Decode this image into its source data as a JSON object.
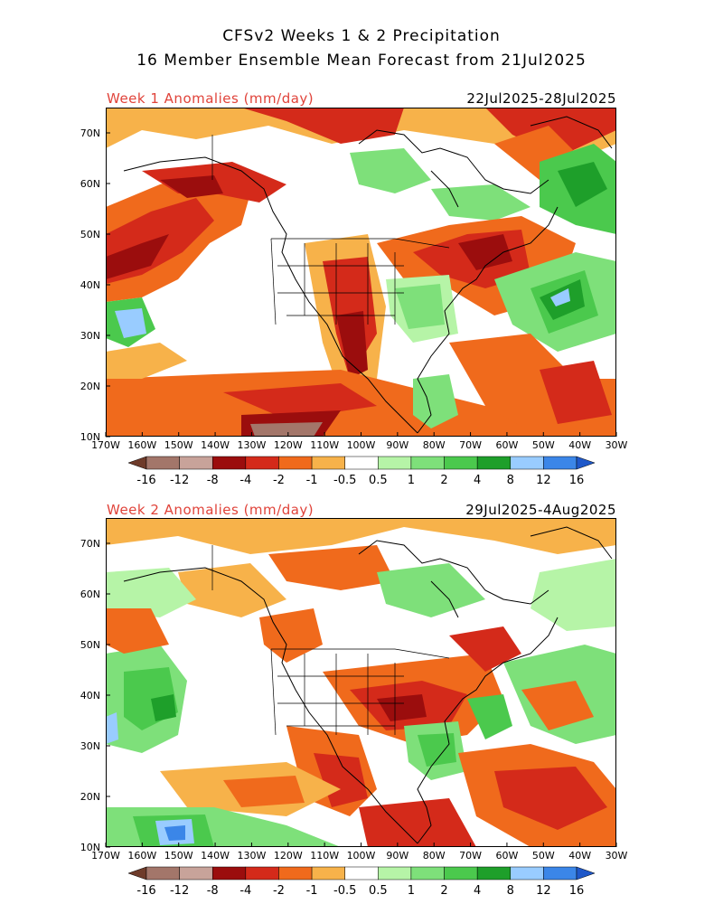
{
  "title_line1": "CFSv2 Weeks 1 & 2 Precipitation",
  "title_line2": "16 Member Ensemble Mean Forecast from 21Jul2025",
  "panels": [
    {
      "label": "Week 1 Anomalies (mm/day)",
      "dates": "22Jul2025-28Jul2025"
    },
    {
      "label": "Week 2 Anomalies (mm/day)",
      "dates": "29Jul2025-4Aug2025"
    }
  ],
  "lat_labels": [
    "70N",
    "60N",
    "50N",
    "40N",
    "30N",
    "20N",
    "10N"
  ],
  "lon_labels": [
    "170W",
    "160W",
    "150W",
    "140W",
    "130W",
    "120W",
    "110W",
    "100W",
    "90W",
    "80W",
    "70W",
    "60W",
    "50W",
    "40W",
    "30W"
  ],
  "colorbar": {
    "labels": [
      "-16",
      "-12",
      "-8",
      "-4",
      "-2",
      "-1",
      "-0.5",
      "0.5",
      "1",
      "2",
      "4",
      "8",
      "12",
      "16"
    ],
    "colors": [
      "#6e3b2a",
      "#a3766a",
      "#c8a39a",
      "#9b0d0d",
      "#d42a1a",
      "#f06a1c",
      "#f7b24a",
      "#ffffff",
      "#b6f4a7",
      "#7ee07a",
      "#4bc94d",
      "#1e9f2a",
      "#99ccff",
      "#3b86e8",
      "#1f58c9"
    ]
  },
  "legend_colors": {
    "dry_dark": "#9b0d0d",
    "dry": "#d42a1a",
    "dry_light": "#f06a1c",
    "dry_faint": "#f7b24a",
    "wet_faint": "#b6f4a7",
    "wet": "#7ee07a",
    "wet_mid": "#4bc94d",
    "wet_dark": "#1e9f2a",
    "wet_blue": "#99ccff"
  }
}
